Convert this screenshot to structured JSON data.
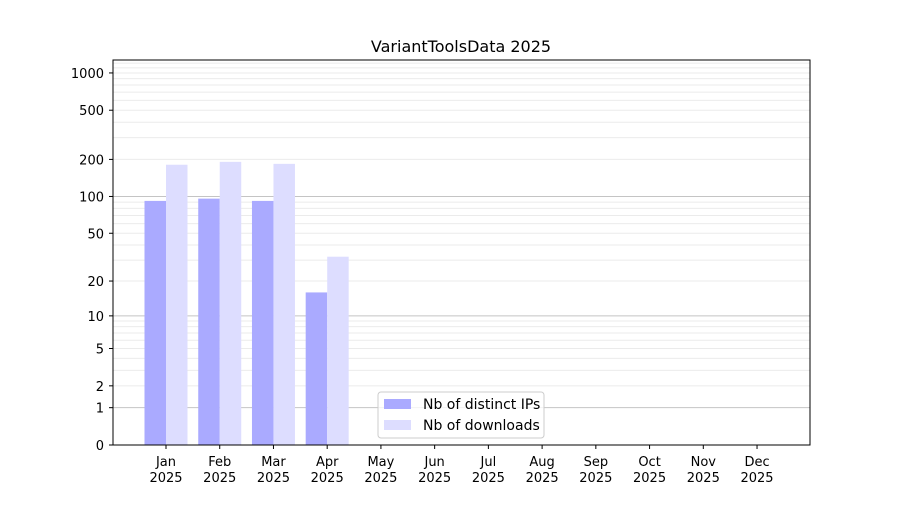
{
  "chart_data": {
    "type": "bar",
    "title": "VariantToolsData 2025",
    "xlabel": "",
    "ylabel": "",
    "yscale": "log10(1+y)",
    "ylim": [
      0,
      1300
    ],
    "yticks": [
      0,
      1,
      2,
      5,
      10,
      20,
      50,
      100,
      200,
      500,
      1000
    ],
    "grid": true,
    "legend_position": "bottom-center",
    "categories": [
      "Jan\n2025",
      "Feb\n2025",
      "Mar\n2025",
      "Apr\n2025",
      "May\n2025",
      "Jun\n2025",
      "Jul\n2025",
      "Aug\n2025",
      "Sep\n2025",
      "Oct\n2025",
      "Nov\n2025",
      "Dec\n2025"
    ],
    "series": [
      {
        "name": "Nb of distinct IPs",
        "color": "#aaaaff",
        "values": [
          92,
          96,
          92,
          16,
          null,
          null,
          null,
          null,
          null,
          null,
          null,
          null
        ]
      },
      {
        "name": "Nb of downloads",
        "color": "#ddddff",
        "values": [
          181,
          191,
          184,
          32,
          null,
          null,
          null,
          null,
          null,
          null,
          null,
          null
        ]
      }
    ]
  }
}
